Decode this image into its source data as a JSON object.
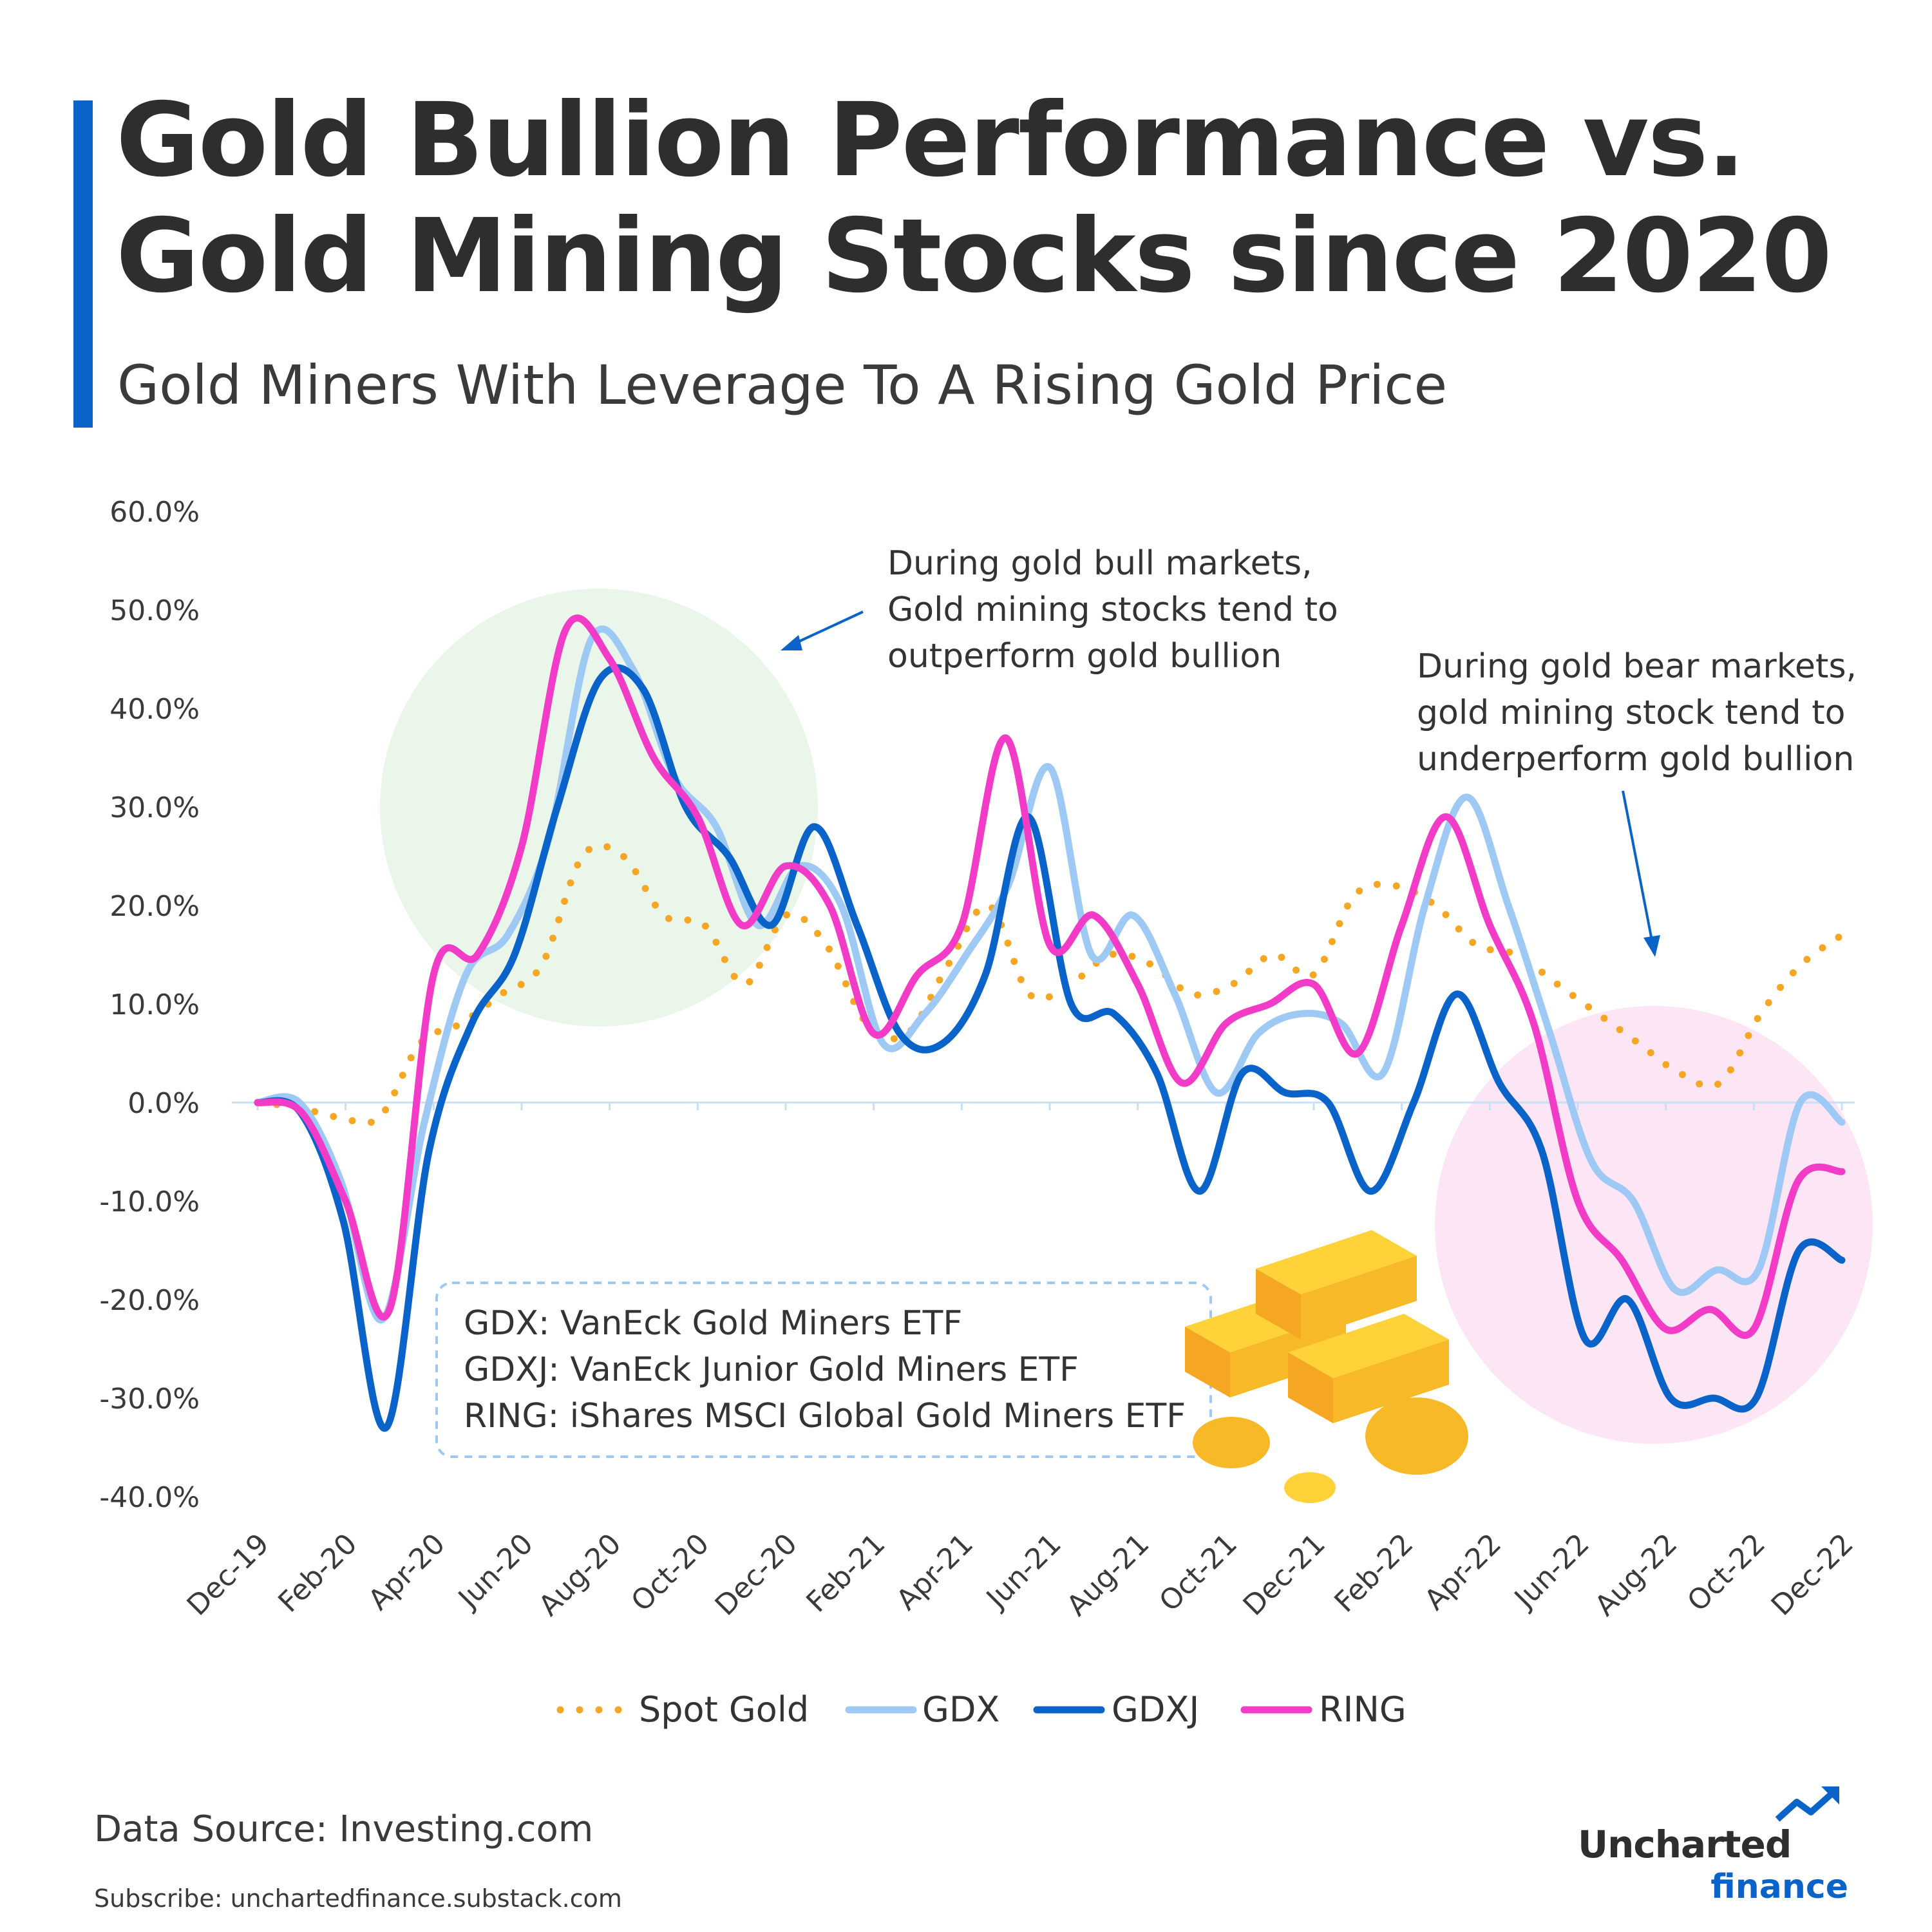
{
  "header": {
    "title_line1": "Gold Bullion Performance vs.",
    "title_line2": "Gold Mining Stocks since 2020",
    "subtitle": "Gold Miners With Leverage To A Rising Gold Price"
  },
  "colors": {
    "accent": "#0a63c9",
    "spot_gold": "#f5a623",
    "gdx": "#9ec9f5",
    "gdxj": "#0a63c9",
    "ring": "#f23bc6",
    "bull_circle": "#eaf6ea",
    "bear_circle": "#fce6f5"
  },
  "chart_data": {
    "type": "line",
    "ylim": [
      -40,
      60
    ],
    "yticks": [
      "60.0%",
      "50.0%",
      "40.0%",
      "30.0%",
      "20.0%",
      "10.0%",
      "0.0%",
      "-10.0%",
      "-20.0%",
      "-30.0%",
      "-40.0%"
    ],
    "ytick_values": [
      60,
      50,
      40,
      30,
      20,
      10,
      0,
      -10,
      -20,
      -30,
      -40
    ],
    "x_labels": [
      "Dec-19",
      "Feb-20",
      "Apr-20",
      "Jun-20",
      "Aug-20",
      "Oct-20",
      "Dec-20",
      "Feb-21",
      "Apr-21",
      "Jun-21",
      "Aug-21",
      "Oct-21",
      "Dec-21",
      "Feb-22",
      "Apr-22",
      "Jun-22",
      "Aug-22",
      "Oct-22",
      "Dec-22"
    ],
    "legend_position": "bottom",
    "series": [
      {
        "name": "Spot Gold",
        "style": "dotted",
        "values": [
          0,
          -0.5,
          -1.5,
          -1.5,
          6,
          8,
          11,
          14,
          25,
          25,
          19,
          18,
          12,
          19,
          16,
          8,
          7,
          14,
          20,
          11,
          12,
          15,
          14,
          11,
          12,
          15,
          13,
          21,
          22,
          20,
          16,
          15,
          12,
          9,
          6,
          3,
          2,
          9,
          14,
          17
        ]
      },
      {
        "name": "GDX",
        "style": "solid",
        "values": [
          0,
          0,
          -8,
          -22,
          -2,
          13,
          17,
          27,
          47,
          44,
          33,
          28,
          18,
          24,
          20,
          6,
          9,
          15,
          22,
          34,
          15,
          19,
          11,
          1,
          7,
          9,
          8,
          3,
          20,
          31,
          20,
          7,
          -6,
          -10,
          -19,
          -17,
          -17,
          0,
          -2
        ]
      },
      {
        "name": "GDXJ",
        "style": "solid",
        "values": [
          0,
          -1,
          -12,
          -33,
          -5,
          8,
          15,
          30,
          43,
          42,
          30,
          25,
          18,
          28,
          18,
          7,
          6,
          13,
          29,
          10,
          9,
          3,
          -9,
          3,
          1,
          0,
          -9,
          0,
          11,
          2,
          -5,
          -24,
          -20,
          -30,
          -30,
          -30,
          -15,
          -16
        ]
      },
      {
        "name": "RING",
        "style": "solid",
        "values": [
          0,
          -1,
          -10,
          -21,
          13,
          15,
          26,
          48,
          45,
          35,
          29,
          18,
          24,
          20,
          7,
          13,
          18,
          37,
          16,
          19,
          12,
          2,
          8,
          10,
          12,
          5,
          18,
          29,
          18,
          8,
          -10,
          -16,
          -23,
          -21,
          -23,
          -8,
          -7
        ]
      }
    ],
    "annotations": [
      "During gold bull markets,",
      "Gold mining stocks tend to",
      "outperform gold bullion",
      "During gold bear markets,",
      "gold mining stock tend to",
      "underperform gold bullion"
    ],
    "notes": [
      "GDX: VanEck Gold Miners ETF",
      "GDXJ: VanEck Junior Gold Miners ETF",
      "RING: iShares MSCI Global Gold Miners ETF"
    ]
  },
  "footer": {
    "source": "Data Source: Investing.com",
    "subscribe": "Subscribe: unchartedfinance.substack.com",
    "brand_name": "Uncharted",
    "brand_sub": "finance"
  }
}
